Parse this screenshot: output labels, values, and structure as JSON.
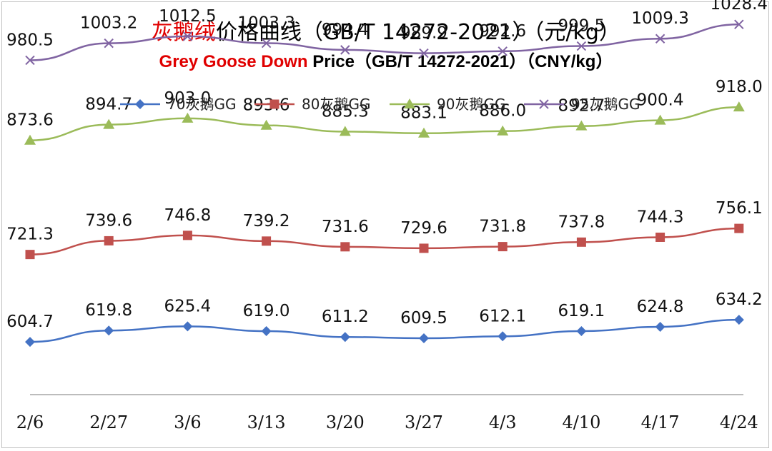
{
  "title": {
    "cn_red": "灰鹅绒",
    "cn_rest": "价格曲线（GB/T 14272-2021）（元/kg）",
    "en_red": "Grey Goose Down",
    "en_rest": " Price（GB/T 14272-2021）（CNY/kg）"
  },
  "chart_data": {
    "type": "line",
    "categories": [
      "2/6",
      "2/27",
      "3/6",
      "3/13",
      "3/20",
      "3/27",
      "4/3",
      "4/10",
      "4/17",
      "4/24"
    ],
    "series": [
      {
        "name": "70灰鹅GG",
        "color": "#4472c4",
        "marker": "diamond",
        "values": [
          604.7,
          619.8,
          625.4,
          619.0,
          611.2,
          609.5,
          612.1,
          619.1,
          624.8,
          634.2
        ],
        "labels": [
          "604.7",
          "619.8",
          "625.4",
          "619.0",
          "611.2",
          "609.5",
          "612.1",
          "619.1",
          "624.8",
          "634.2"
        ]
      },
      {
        "name": "80灰鹅GG",
        "color": "#c0504d",
        "marker": "square",
        "values": [
          721.3,
          739.6,
          746.8,
          739.2,
          731.6,
          729.6,
          731.8,
          737.8,
          744.3,
          756.1
        ],
        "labels": [
          "721.3",
          "739.6",
          "746.8",
          "739.2",
          "731.6",
          "729.6",
          "731.8",
          "737.8",
          "744.3",
          "756.1"
        ]
      },
      {
        "name": "90灰鹅GG",
        "color": "#9bbb59",
        "marker": "triangle",
        "values": [
          873.6,
          894.7,
          903.0,
          893.6,
          885.3,
          883.1,
          886.0,
          892.7,
          900.4,
          918.0
        ],
        "labels": [
          "873.6",
          "894.7",
          "903.0",
          "893.6",
          "885.3",
          "883.1",
          "886.0",
          "892.7",
          "900.4",
          "918.0"
        ]
      },
      {
        "name": "95灰鹅GG",
        "color": "#8064a2",
        "marker": "x",
        "values": [
          980.5,
          1003.2,
          1012.5,
          1003.3,
          994.4,
          989.9,
          992.6,
          999.5,
          1009.3,
          1028.4
        ],
        "labels": [
          "980.5",
          "1003.2",
          "1012.5",
          "1003.3",
          "994.4",
          "989.9",
          "992.6",
          "999.5",
          "1009.3",
          "1028.4"
        ]
      }
    ],
    "legend_position": "top",
    "grid": false,
    "axis_line_color": "#a6a6a6"
  }
}
